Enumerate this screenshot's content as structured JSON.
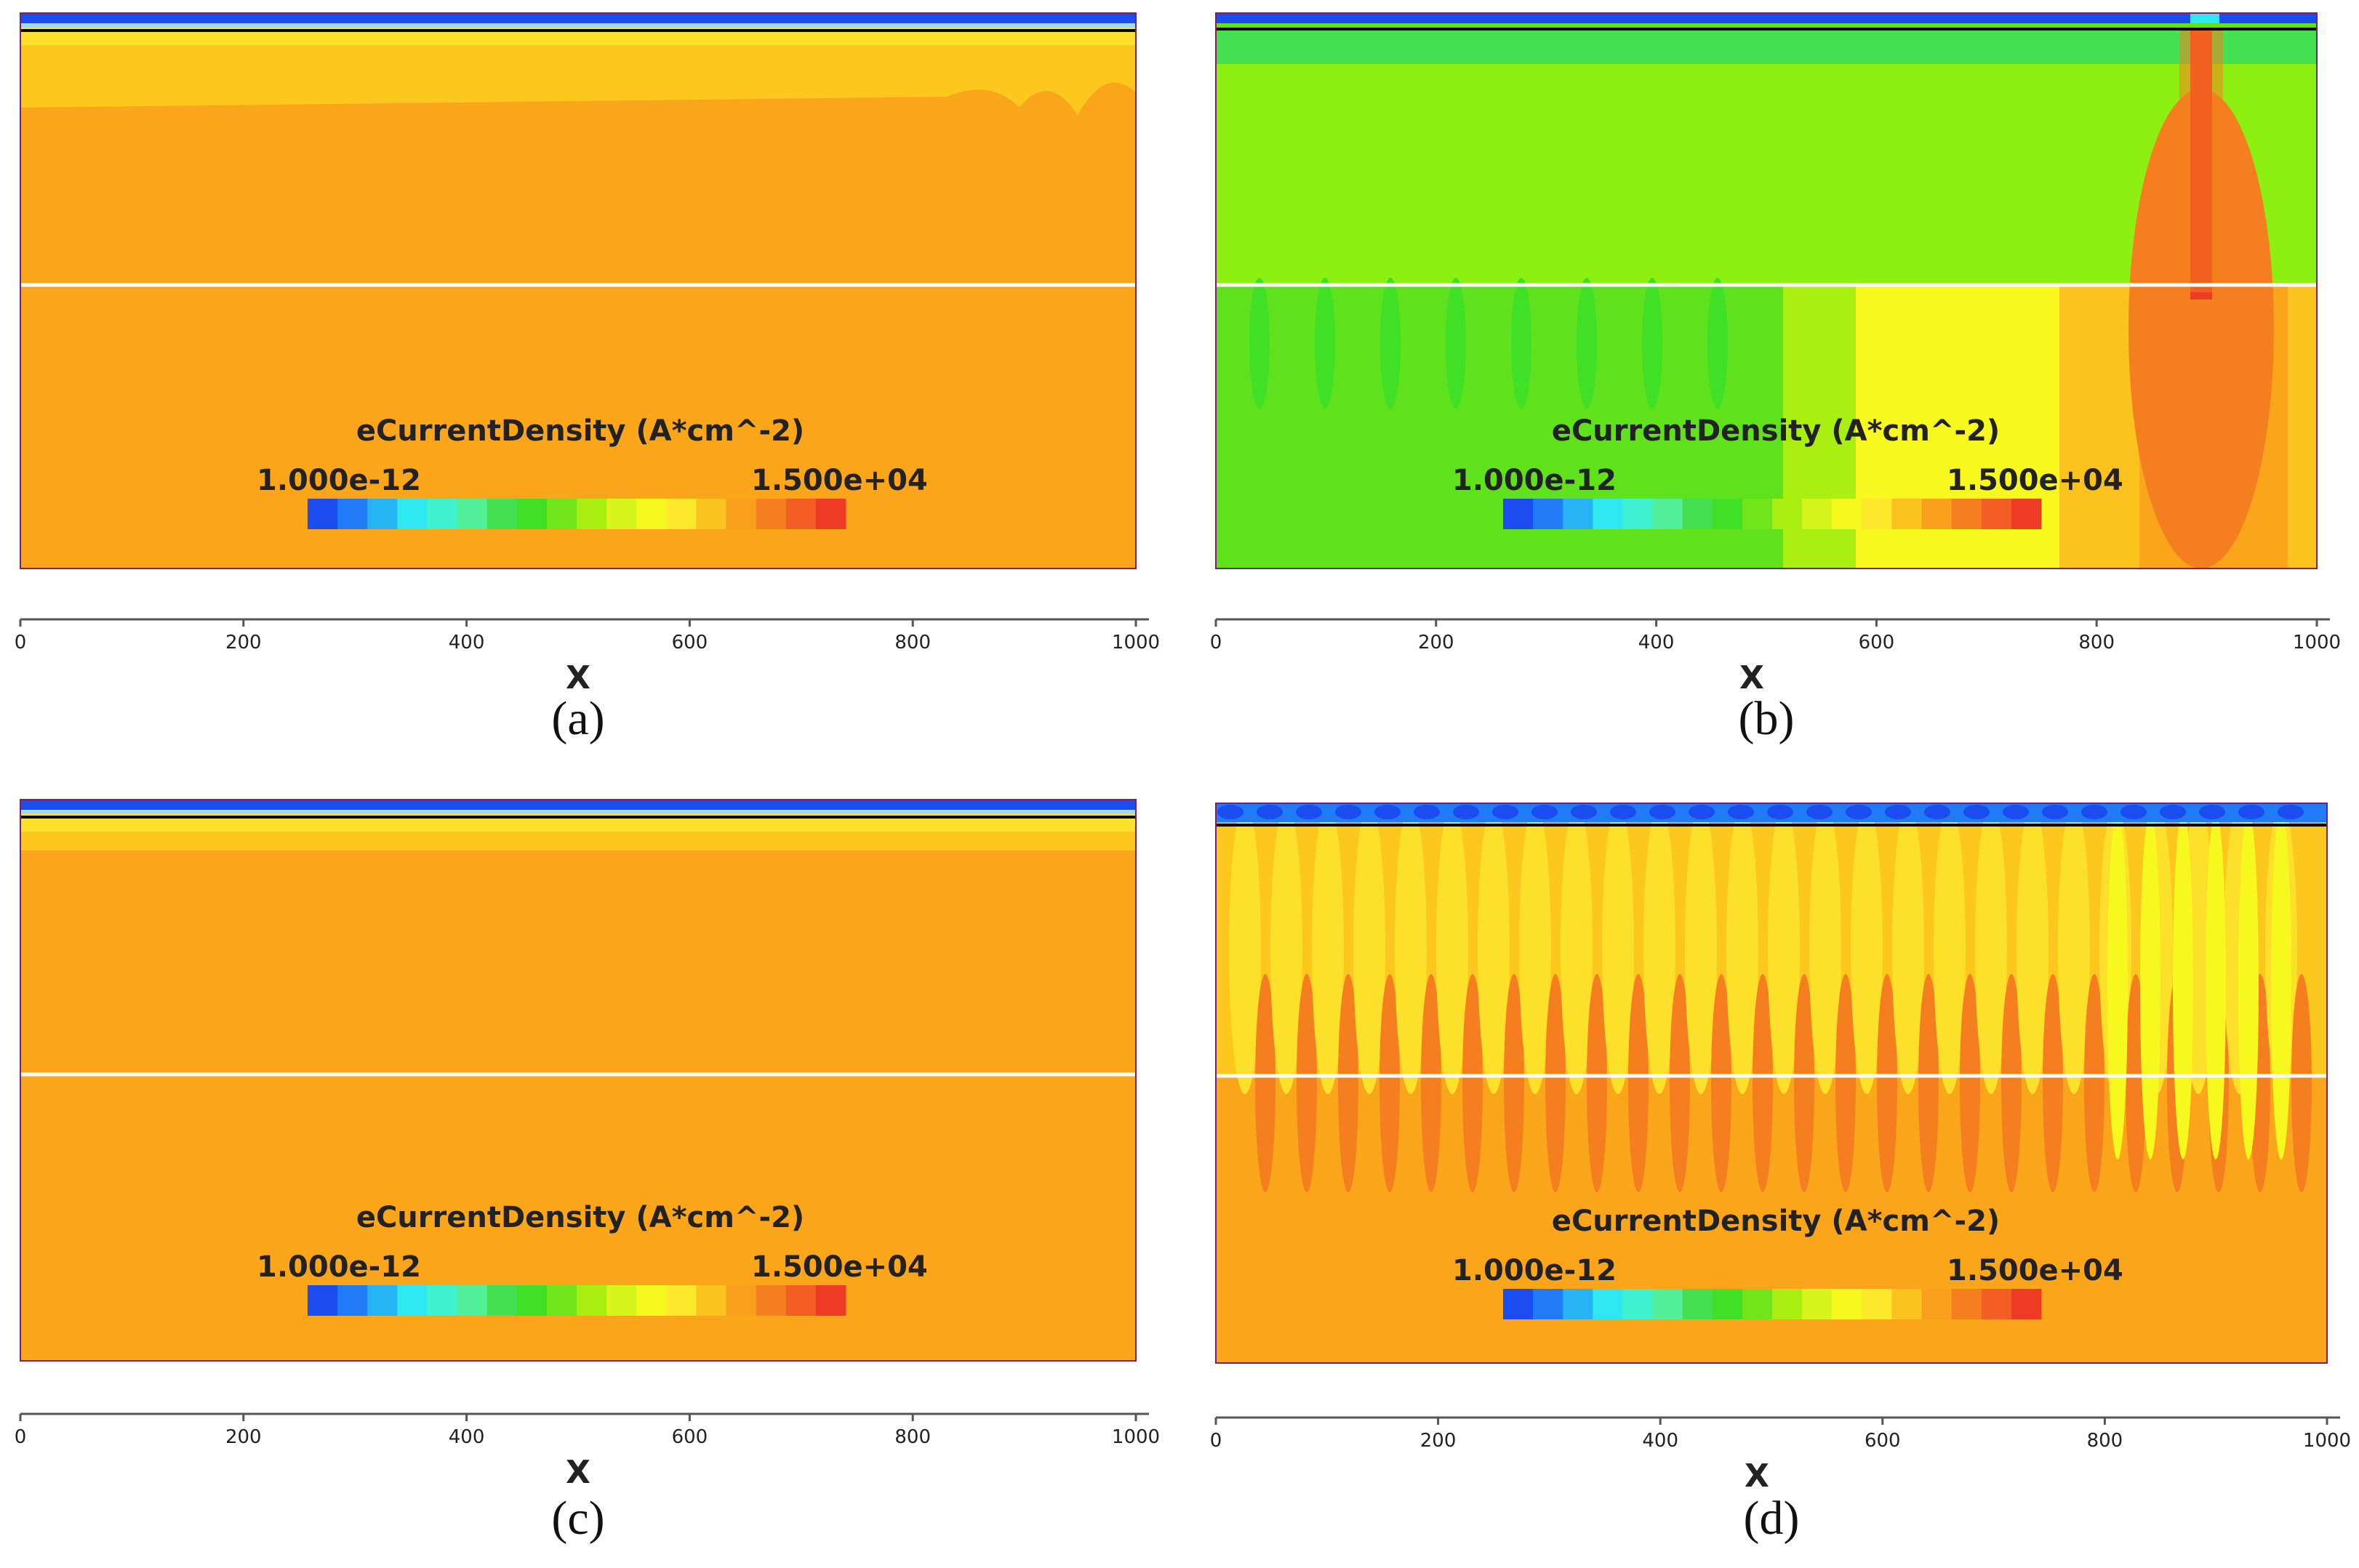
{
  "figure": {
    "colormap": [
      "#1a4cf0",
      "#1f7cf6",
      "#27b4f7",
      "#2ee7f0",
      "#3ff3d0",
      "#52ef99",
      "#45e052",
      "#3fe026",
      "#6fe51a",
      "#a9ef12",
      "#d6f51a",
      "#f6f81e",
      "#fde92c",
      "#fcc21e",
      "#f9a11c",
      "#f57f1e",
      "#f25e24",
      "#ed3b24"
    ]
  },
  "chart_data": [
    {
      "type": "heatmap",
      "panel": "(a)",
      "quantity": "eCurrentDensity",
      "legend_title": "eCurrentDensity (A*cm^-2)",
      "color_min_label": "1.000e-12",
      "color_max_label": "1.500e+04",
      "xlabel": "X",
      "xticks": [
        "0",
        "200",
        "400",
        "600",
        "800",
        "1000"
      ],
      "xlim": [
        0,
        1000
      ],
      "dominant_colors": [
        "#fba61a",
        "#fcc81e",
        "#fde02a",
        "#1a4cf0"
      ],
      "description_values": {
        "x_pillar_center": null
      }
    },
    {
      "type": "heatmap",
      "panel": "(b)",
      "quantity": "eCurrentDensity",
      "legend_title": "eCurrentDensity (A*cm^-2)",
      "color_min_label": "1.000e-12",
      "color_max_label": "1.500e+04",
      "xlabel": "X",
      "xticks": [
        "0",
        "200",
        "400",
        "600",
        "800",
        "1000"
      ],
      "xlim": [
        0,
        1000
      ],
      "dominant_colors": [
        "#5fe21b",
        "#8ef010",
        "#f6f81e",
        "#fba61a",
        "#ed3b24"
      ],
      "description_values": {
        "x_pillar_center": 890
      }
    },
    {
      "type": "heatmap",
      "panel": "(c)",
      "quantity": "eCurrentDensity",
      "legend_title": "eCurrentDensity (A*cm^-2)",
      "color_min_label": "1.000e-12",
      "color_max_label": "1.500e+04",
      "xlabel": "X",
      "xticks": [
        "0",
        "200",
        "400",
        "600",
        "800",
        "1000"
      ],
      "xlim": [
        0,
        1000
      ],
      "dominant_colors": [
        "#fba61a",
        "#fcc81e",
        "#1a4cf0"
      ],
      "description_values": {
        "x_pillar_center": null
      }
    },
    {
      "type": "heatmap",
      "panel": "(d)",
      "quantity": "eCurrentDensity",
      "legend_title": "eCurrentDensity (A*cm^-2)",
      "color_min_label": "1.000e-12",
      "color_max_label": "1.500e+04",
      "xlabel": "X",
      "xticks": [
        "0",
        "200",
        "400",
        "600",
        "800",
        "1000"
      ],
      "xlim": [
        0,
        1000
      ],
      "dominant_colors": [
        "#fba61a",
        "#fcc81e",
        "#f6f81e",
        "#f57f1e",
        "#1a4cf0"
      ],
      "description_values": {
        "x_pillar_center": null
      }
    }
  ]
}
